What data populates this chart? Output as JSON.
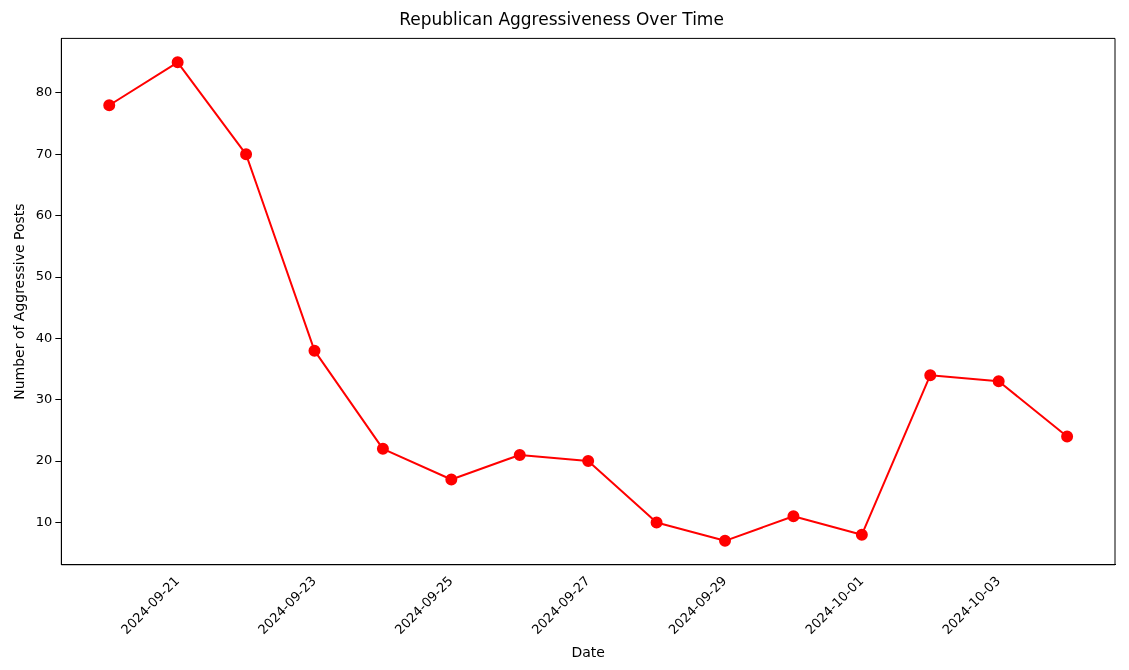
{
  "chart_data": {
    "type": "line",
    "title": "Republican Aggressiveness Over Time",
    "xlabel": "Date",
    "ylabel": "Number of Aggressive Posts",
    "x": [
      "2024-09-20",
      "2024-09-21",
      "2024-09-22",
      "2024-09-23",
      "2024-09-24",
      "2024-09-25",
      "2024-09-26",
      "2024-09-27",
      "2024-09-28",
      "2024-09-29",
      "2024-09-30",
      "2024-10-01",
      "2024-10-02",
      "2024-10-03",
      "2024-10-04"
    ],
    "series": [
      {
        "color": "#ff0000",
        "values": [
          78,
          85,
          70,
          38,
          22,
          17,
          21,
          20,
          10,
          7,
          11,
          8,
          34,
          33,
          24
        ]
      }
    ],
    "xlim": [
      "2024-09-19T07:12",
      "2024-10-04T16:48"
    ],
    "xticks": [
      "2024-09-21",
      "2024-09-23",
      "2024-09-25",
      "2024-09-27",
      "2024-09-29",
      "2024-10-01",
      "2024-10-03"
    ],
    "ylim": [
      3.1,
      88.9
    ],
    "yticks": [
      10,
      20,
      30,
      40,
      50,
      60,
      70,
      80
    ],
    "grid": false,
    "legend": false,
    "marker": "circle",
    "line_style": "solid"
  }
}
